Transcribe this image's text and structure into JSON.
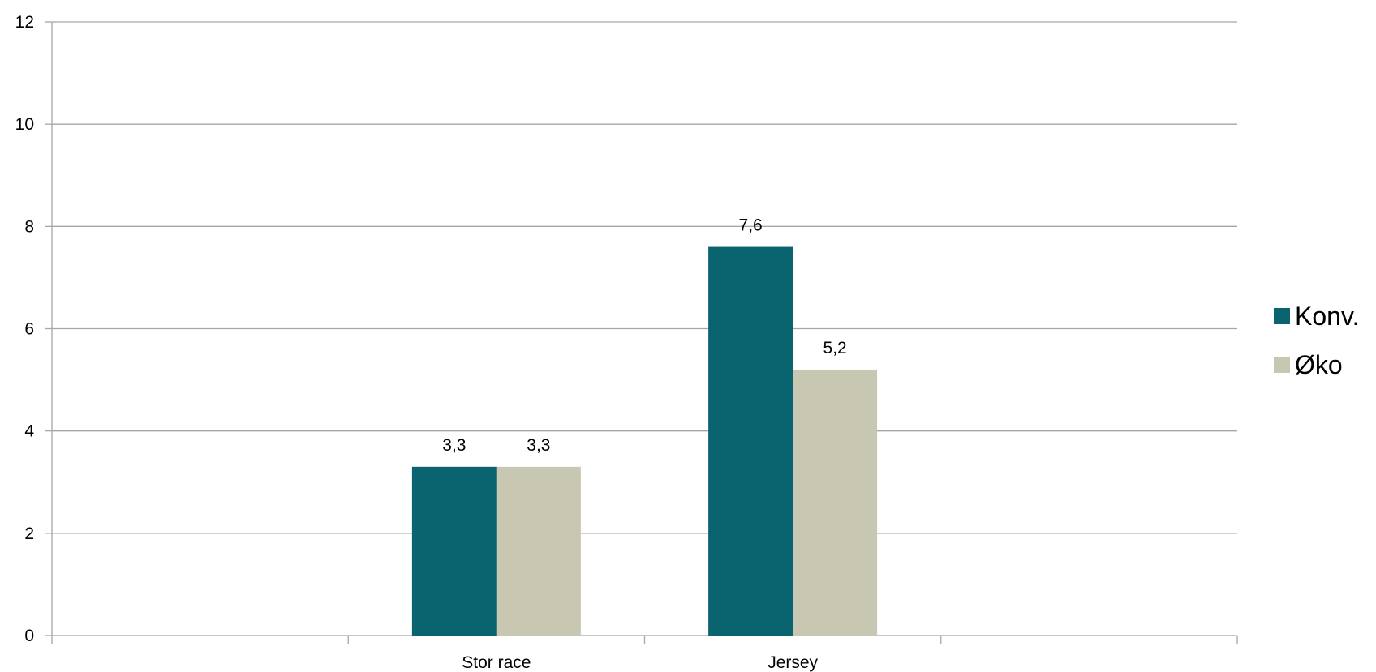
{
  "chart_data": {
    "type": "bar",
    "categories": [
      "",
      "Stor race",
      "Jersey",
      ""
    ],
    "series": [
      {
        "name": "Konv.",
        "values": [
          null,
          3.3,
          7.6,
          null
        ],
        "labels": [
          "",
          "3,3",
          "7,6",
          ""
        ],
        "color": "#0a6470"
      },
      {
        "name": "Øko",
        "values": [
          null,
          3.3,
          5.2,
          null
        ],
        "labels": [
          "",
          "3,3",
          "5,2",
          ""
        ],
        "color": "#c8c7b1"
      }
    ],
    "yticks": [
      0,
      2,
      4,
      6,
      8,
      10,
      12
    ],
    "ytick_labels": [
      "0",
      "2",
      "4",
      "6",
      "8",
      "10",
      "12"
    ],
    "ylim": [
      0,
      12
    ],
    "grid": true,
    "grid_color": "#a6a6a6",
    "legend_position": "right"
  }
}
